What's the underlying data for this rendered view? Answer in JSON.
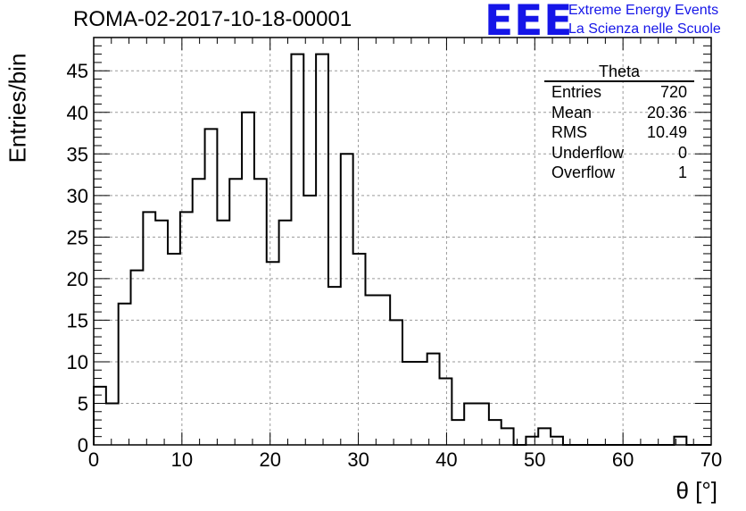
{
  "title": "ROMA-02-2017-10-18-00001",
  "logo": {
    "mark": "EEE",
    "line1": "Extreme Energy Events",
    "line2": "La Scienza nelle Scuole",
    "color": "#1515e8"
  },
  "stats_box": {
    "name": "Theta",
    "rows": [
      {
        "label": "Entries",
        "value": "720"
      },
      {
        "label": "Mean",
        "value": "20.36"
      },
      {
        "label": "RMS",
        "value": "10.49"
      },
      {
        "label": "Underflow",
        "value": "0"
      },
      {
        "label": "Overflow",
        "value": "1"
      }
    ]
  },
  "chart_data": {
    "type": "bar",
    "style": "step-histogram",
    "title": "ROMA-02-2017-10-18-00001",
    "xlabel": "θ [°]",
    "ylabel": "Entries/bin",
    "xlim": [
      0,
      70
    ],
    "ylim": [
      0,
      49
    ],
    "bin_width": 1.4,
    "bin_edges_start": 0,
    "values": [
      7,
      5,
      17,
      21,
      28,
      27,
      23,
      28,
      32,
      38,
      27,
      32,
      40,
      32,
      22,
      27,
      47,
      30,
      47,
      19,
      35,
      23,
      18,
      18,
      15,
      10,
      10,
      11,
      8,
      3,
      5,
      5,
      3,
      2,
      0,
      1,
      2,
      1,
      0,
      0,
      0,
      0,
      0,
      0,
      0,
      0,
      0,
      1,
      0,
      0
    ],
    "x_ticks": [
      0,
      10,
      20,
      30,
      40,
      50,
      60,
      70
    ],
    "y_ticks": [
      0,
      5,
      10,
      15,
      20,
      25,
      30,
      35,
      40,
      45
    ],
    "grid": true,
    "legend": "top-right stats box"
  }
}
